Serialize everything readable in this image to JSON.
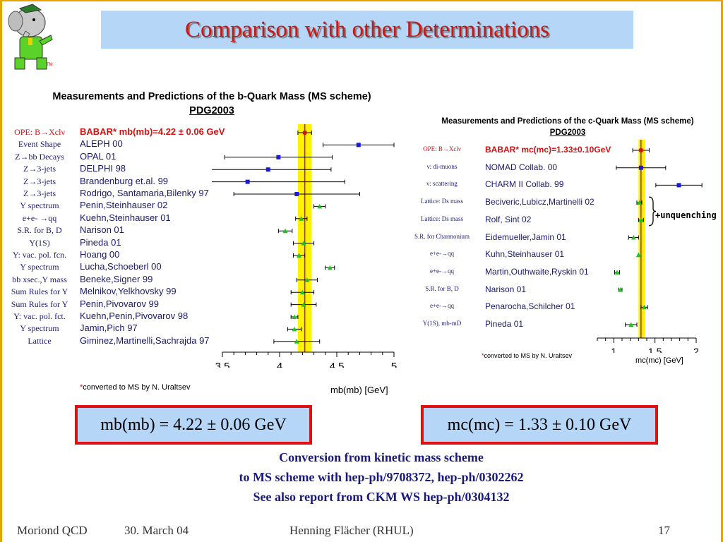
{
  "slide": {
    "title": "Comparison with other Determinations",
    "tm": "TM",
    "footer": {
      "left": "Moriond QCD",
      "date": "30. March 04",
      "author": "Henning Flächer (RHUL)",
      "page": "17"
    }
  },
  "colors": {
    "title": "#c81818",
    "title_bg": "#b5d6f7",
    "frame": "#e9a300",
    "band": "#fff200",
    "babar": "#d21212",
    "points": "#1a1adb",
    "theory": "#22c222"
  },
  "chart_data": [
    {
      "type": "scatter",
      "title": "Measurements and Predictions of the b-Quark Mass (MS scheme)",
      "subtitle": "PDG2003",
      "xlabel": "mb(mb) [GeV]",
      "xlim": [
        3.5,
        5
      ],
      "xticks": [
        "3.5",
        "4",
        "4.5",
        "5"
      ],
      "note": "converted to MS by N. Uraltsev",
      "band": [
        4.16,
        4.28
      ],
      "points": [
        {
          "method": "OPE: B→Xclν",
          "name": "BABAR*  mb(mb)=4.22 ± 0.06 GeV",
          "value": 4.22,
          "err_lo": 0.06,
          "err_hi": 0.06,
          "kind": "babar"
        },
        {
          "method": "Event Shape",
          "name": "ALEPH 00",
          "value": 4.69,
          "err_lo": 0.31,
          "err_hi": 0.31,
          "kind": "exp"
        },
        {
          "method": "Z→bb Decays",
          "name": "OPAL 01",
          "value": 3.99,
          "err_lo": 0.47,
          "err_hi": 0.47,
          "kind": "exp"
        },
        {
          "method": "Z→3-jets",
          "name": "DELPHI 98",
          "value": 3.9,
          "err_lo": 0.55,
          "err_hi": 0.55,
          "kind": "exp"
        },
        {
          "method": "Z→3-jets",
          "name": "Brandenburg et.al. 99",
          "value": 3.72,
          "err_lo": 0.45,
          "err_hi": 0.85,
          "kind": "exp"
        },
        {
          "method": "Z→3-jets",
          "name": "Rodrigo, Santamaria,Bilenky 97",
          "value": 4.15,
          "err_lo": 0.55,
          "err_hi": 0.55,
          "kind": "exp"
        },
        {
          "method": "Y spectrum",
          "name": "Penin,Steinhauser 02",
          "value": 4.35,
          "err_lo": 0.05,
          "err_hi": 0.05,
          "kind": "theory"
        },
        {
          "method": "e+e- →qq",
          "name": "Kuehn,Steinhauser 01",
          "value": 4.19,
          "err_lo": 0.05,
          "err_hi": 0.05,
          "kind": "theory"
        },
        {
          "method": "S.R. for B, D",
          "name": "Narison 01",
          "value": 4.05,
          "err_lo": 0.06,
          "err_hi": 0.06,
          "kind": "theory"
        },
        {
          "method": "Y(1S)",
          "name": "Pineda 01",
          "value": 4.21,
          "err_lo": 0.09,
          "err_hi": 0.09,
          "kind": "theory"
        },
        {
          "method": "Y: vac. pol. fcn.",
          "name": "Hoang 00",
          "value": 4.17,
          "err_lo": 0.05,
          "err_hi": 0.05,
          "kind": "theory"
        },
        {
          "method": "Y spectrum",
          "name": "Lucha,Schoeberl 00",
          "value": 4.44,
          "err_lo": 0.04,
          "err_hi": 0.04,
          "kind": "theory"
        },
        {
          "method": "bb xsec.,Y mass",
          "name": "Beneke,Signer 99",
          "value": 4.24,
          "err_lo": 0.09,
          "err_hi": 0.09,
          "kind": "theory"
        },
        {
          "method": "Sum Rules for Y",
          "name": "Melnikov,Yelkhovsky 99",
          "value": 4.2,
          "err_lo": 0.1,
          "err_hi": 0.1,
          "kind": "theory"
        },
        {
          "method": "Sum Rules for Y",
          "name": "Penin,Pivovarov 99",
          "value": 4.21,
          "err_lo": 0.11,
          "err_hi": 0.11,
          "kind": "theory"
        },
        {
          "method": "Y: vac. pol. fct.",
          "name": "Kuehn,Penin,Pivovarov 98",
          "value": 4.13,
          "err_lo": 0.03,
          "err_hi": 0.03,
          "kind": "theory"
        },
        {
          "method": "Y spectrum",
          "name": "Jamin,Pich 97",
          "value": 4.13,
          "err_lo": 0.06,
          "err_hi": 0.06,
          "kind": "theory"
        },
        {
          "method": "Lattice",
          "name": "Giminez,Martinelli,Sachrajda 97",
          "value": 4.15,
          "err_lo": 0.2,
          "err_hi": 0.2,
          "kind": "theory"
        }
      ]
    },
    {
      "type": "scatter",
      "title": "Measurements and Predictions of the c-Quark Mass (MS scheme)",
      "subtitle": "PDG2003",
      "xlabel": "mc(mc) [GeV]",
      "xlim": [
        0.8,
        2
      ],
      "xticks": [
        "1",
        "1.5",
        "2"
      ],
      "note": "converted to MS by N. Uraltsev",
      "band": [
        1.3,
        1.38
      ],
      "bracket_label": "+unquenching",
      "points": [
        {
          "method": "OPE: B→Xclν",
          "name": "BABAR*  mc(mc)=1.33±0.10GeV",
          "value": 1.33,
          "err_lo": 0.1,
          "err_hi": 0.1,
          "kind": "babar"
        },
        {
          "method": "ν: di-muons",
          "name": "NOMAD Collab. 00",
          "value": 1.33,
          "err_lo": 0.3,
          "err_hi": 0.3,
          "kind": "exp"
        },
        {
          "method": "ν: scattering",
          "name": "CHARM II Collab. 99",
          "value": 1.79,
          "err_lo": 0.28,
          "err_hi": 0.28,
          "kind": "exp"
        },
        {
          "method": "Lattice: Ds mass",
          "name": "Beciveric,Lubicz,Martinelli 02",
          "value": 1.31,
          "err_lo": 0.03,
          "err_hi": 0.03,
          "kind": "theory"
        },
        {
          "method": "Lattice: Ds mass",
          "name": "Rolf, Sint 02",
          "value": 1.33,
          "err_lo": 0.03,
          "err_hi": 0.03,
          "kind": "theory"
        },
        {
          "method": "S.R. for Charmonium",
          "name": "Eidemueller,Jamin 01",
          "value": 1.24,
          "err_lo": 0.06,
          "err_hi": 0.06,
          "kind": "theory"
        },
        {
          "method": "e+e-→qq",
          "name": "Kuhn,Steinhauser 01",
          "value": 1.3,
          "err_lo": 0.0,
          "err_hi": 0.0,
          "kind": "theory"
        },
        {
          "method": "e+e-→qq",
          "name": "Martin,Outhwaite,Ryskin 01",
          "value": 1.04,
          "err_lo": 0.03,
          "err_hi": 0.03,
          "kind": "theory"
        },
        {
          "method": "S.R. for B, D",
          "name": "Narison 01",
          "value": 1.08,
          "err_lo": 0.02,
          "err_hi": 0.02,
          "kind": "theory"
        },
        {
          "method": "e+e-→qq",
          "name": "Penarocha,Schilcher 01",
          "value": 1.37,
          "err_lo": 0.04,
          "err_hi": 0.04,
          "kind": "theory"
        },
        {
          "method": "Y(1S), mb-mD",
          "name": "Pineda 01",
          "value": 1.21,
          "err_lo": 0.07,
          "err_hi": 0.07,
          "kind": "theory"
        }
      ]
    }
  ],
  "results": {
    "mb": "mb(mb) = 4.22 ± 0.06 GeV",
    "mc": "mc(mc) = 1.33 ± 0.10 GeV"
  },
  "conversion": {
    "line1": "Conversion from kinetic mass scheme",
    "line2": "to MS scheme with hep-ph/9708372, hep-ph/0302262",
    "line3": "See also report from CKM WS hep-ph/0304132"
  }
}
